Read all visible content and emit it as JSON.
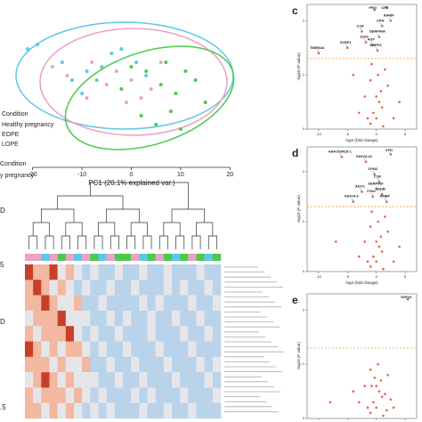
{
  "chart_data": [
    {
      "type": "scatter",
      "xlabel": "PC1 (20.1% explained var.)",
      "xlim": [
        -23,
        23
      ],
      "ylim": [
        -17,
        18
      ],
      "xticks": [
        -20,
        -10,
        0,
        10,
        20
      ],
      "legend_title": "Condition",
      "series": [
        {
          "name": "Healthy pregnancy",
          "color": "#5bc8e8",
          "x": [
            -21,
            -19,
            -14,
            -9,
            -6,
            -4,
            -2,
            -10,
            -7,
            1,
            3,
            -12
          ],
          "y": [
            9,
            10,
            6,
            4,
            5,
            8,
            9,
            -1,
            2,
            6,
            3,
            2
          ]
        },
        {
          "name": "EOPE",
          "color": "#eba2c4",
          "x": [
            -16,
            -13,
            -8,
            -5,
            -3,
            0,
            2,
            -1,
            6,
            -9,
            4
          ],
          "y": [
            5,
            3,
            6,
            1,
            4,
            2,
            -2,
            -3,
            6,
            -2,
            0
          ]
        },
        {
          "name": "LOPE",
          "color": "#4cc94c",
          "x": [
            0,
            3,
            6,
            9,
            11,
            13,
            8,
            5,
            2,
            -2,
            10,
            15,
            7
          ],
          "y": [
            5,
            4,
            1,
            -1,
            4,
            2,
            -5,
            -8,
            -6,
            0,
            -9,
            -3,
            6
          ]
        }
      ]
    },
    {
      "type": "heatmap",
      "condition_labels": [
        "Condition",
        "y pregnancy"
      ],
      "side_labels": [
        "D",
        "5",
        "D",
        ".5"
      ],
      "group_colors": [
        "#5bc8e8",
        "#eba2c4",
        "#4cc94c"
      ],
      "column_groups": [
        1,
        1,
        0,
        1,
        2,
        1,
        0,
        1,
        2,
        0,
        1,
        2,
        2,
        1,
        0,
        2,
        1,
        2,
        0,
        2,
        1,
        2,
        0,
        2
      ],
      "values": [
        [
          2,
          1,
          1,
          2,
          0,
          1,
          0,
          -1,
          0,
          -1,
          -1,
          0,
          -1,
          -1,
          0,
          -1,
          -1,
          0,
          -1,
          -1,
          -1,
          0,
          -1,
          -1
        ],
        [
          1,
          2,
          1,
          0,
          1,
          0,
          -1,
          0,
          -1,
          -1,
          0,
          -1,
          -1,
          0,
          -1,
          -1,
          -1,
          0,
          -1,
          0,
          -1,
          -1,
          0,
          -1
        ],
        [
          1,
          1,
          2,
          1,
          0,
          0,
          1,
          -1,
          -1,
          0,
          -1,
          -1,
          -1,
          -1,
          0,
          -1,
          0,
          -1,
          -1,
          -1,
          0,
          -1,
          -1,
          0
        ],
        [
          0,
          1,
          1,
          1,
          2,
          0,
          0,
          0,
          -1,
          -1,
          0,
          -1,
          0,
          -1,
          -1,
          0,
          -1,
          -1,
          0,
          -1,
          -1,
          0,
          -1,
          -1
        ],
        [
          1,
          0,
          1,
          1,
          1,
          2,
          0,
          -1,
          0,
          -1,
          -1,
          0,
          -1,
          -1,
          -1,
          0,
          -1,
          -1,
          -1,
          0,
          -1,
          -1,
          0,
          -1
        ],
        [
          2,
          1,
          0,
          1,
          0,
          1,
          1,
          0,
          -1,
          0,
          -1,
          -1,
          0,
          -1,
          -1,
          -1,
          0,
          -1,
          -1,
          -1,
          0,
          -1,
          -1,
          -1
        ],
        [
          1,
          1,
          1,
          0,
          1,
          0,
          0,
          1,
          -1,
          -1,
          0,
          -1,
          -1,
          0,
          -1,
          -1,
          -1,
          0,
          -1,
          -1,
          -1,
          0,
          -1,
          0
        ],
        [
          0,
          1,
          2,
          1,
          0,
          1,
          0,
          0,
          0,
          -1,
          -1,
          0,
          -1,
          -1,
          0,
          -1,
          -1,
          -1,
          0,
          -1,
          -1,
          -1,
          0,
          -1
        ],
        [
          1,
          0,
          1,
          1,
          1,
          0,
          1,
          0,
          -1,
          0,
          -1,
          -1,
          -1,
          0,
          -1,
          0,
          -1,
          -1,
          -1,
          0,
          -1,
          -1,
          -1,
          0
        ],
        [
          1,
          1,
          0,
          1,
          0,
          1,
          0,
          -1,
          0,
          -1,
          0,
          -1,
          -1,
          -1,
          0,
          -1,
          -1,
          0,
          -1,
          -1,
          0,
          -1,
          -1,
          -1
        ]
      ]
    },
    {
      "type": "volcano",
      "panel": "c",
      "xlabel": "log2 (fold change)",
      "ylabel": "-log10 (P value)",
      "xlim": [
        -12,
        7
      ],
      "ylim": [
        0,
        2.3
      ],
      "xticks": [
        -10,
        -5,
        0,
        5
      ],
      "yticks": [
        0,
        1,
        2
      ],
      "threshold": 1.3,
      "threshold_color": "#f0a030",
      "color": "#e8604c",
      "x": [
        -1,
        -0.5,
        0,
        0.5,
        1,
        -2,
        2,
        -1,
        0.3,
        1.5,
        -3,
        3,
        -0.8,
        0.8,
        -1.5,
        0,
        1.2,
        -4,
        -10,
        -5,
        -2.5,
        -1.8,
        -0.6,
        0.5,
        1,
        2.5,
        -0.3,
        1.8,
        0.2,
        4
      ],
      "y": [
        0.1,
        0.3,
        0.2,
        0.5,
        0.4,
        0.6,
        0.8,
        0.9,
        1.0,
        1.1,
        0.3,
        0.2,
        1.2,
        0.7,
        0.2,
        0.6,
        0.05,
        1.0,
        1.4,
        1.5,
        1.8,
        1.6,
        1.55,
        1.7,
        1.9,
        2.0,
        2.2,
        2.25,
        1.45,
        0.5
      ],
      "labels": [
        null,
        null,
        null,
        null,
        null,
        null,
        null,
        null,
        null,
        null,
        null,
        null,
        null,
        null,
        null,
        null,
        null,
        null,
        "TMEM44",
        "SVEP1",
        "C1R",
        "S100",
        "AGT",
        "SERPINA",
        "CPN",
        "IGFBP",
        "PRG",
        "CFD",
        "ENPP3",
        null
      ]
    },
    {
      "type": "volcano",
      "panel": "d",
      "xlabel": "log2 (fold change)",
      "ylabel": "-log10 (P value)",
      "xlim": [
        -12,
        7
      ],
      "ylim": [
        0,
        2.5
      ],
      "xticks": [
        -10,
        -5,
        0,
        5
      ],
      "yticks": [
        0,
        1,
        2
      ],
      "threshold": 1.3,
      "threshold_color": "#f0a030",
      "color": "#e8604c",
      "x": [
        -1,
        -0.5,
        0,
        0.5,
        1,
        -2,
        2,
        -1,
        0.3,
        1.5,
        -3,
        3,
        -0.8,
        0.8,
        -1.5,
        0,
        1.2,
        -6,
        -4,
        -2.5,
        -1.8,
        -0.6,
        0.5,
        1,
        2.5,
        -0.3,
        1.8,
        0.2,
        4,
        -7
      ],
      "y": [
        0.1,
        0.3,
        0.2,
        0.5,
        0.4,
        0.6,
        0.8,
        0.9,
        1.0,
        1.1,
        0.3,
        0.2,
        1.2,
        0.7,
        0.2,
        0.6,
        0.05,
        2.3,
        1.4,
        1.6,
        2.2,
        1.5,
        1.8,
        1.55,
        2.35,
        1.95,
        1.4,
        1.65,
        0.5,
        0.6
      ],
      "labels": [
        null,
        null,
        null,
        null,
        null,
        null,
        null,
        null,
        null,
        null,
        null,
        null,
        null,
        null,
        null,
        null,
        null,
        "IGHV3OR15-1",
        "IGHV4-3",
        "ADC1",
        "IGHV3-23",
        "ITIH4",
        "C1R",
        "PDHB",
        "CFD",
        "CPN2",
        "AMBP",
        "SERPINF",
        null,
        null
      ]
    },
    {
      "type": "volcano",
      "panel": "e",
      "xlabel": "log2 (fold change)",
      "ylabel": "-log10 (P value)",
      "xlim": [
        -12,
        7
      ],
      "ylim": [
        0,
        2.3
      ],
      "xticks": [
        -10,
        -5,
        0,
        5
      ],
      "yticks": [
        0,
        1,
        2
      ],
      "threshold": 1.3,
      "threshold_color": "#f0a030",
      "color": "#e8604c",
      "x": [
        -1,
        -0.5,
        0,
        0.5,
        1,
        -2,
        2,
        -1,
        0.3,
        1.5,
        -3,
        3,
        -0.8,
        0.8,
        -1.5,
        0,
        1.2,
        -4,
        -8,
        2.5,
        -0.3,
        1.8,
        5.5
      ],
      "y": [
        0.1,
        0.3,
        0.2,
        0.5,
        0.4,
        0.6,
        0.8,
        0.9,
        1.0,
        0.45,
        0.3,
        0.2,
        0.6,
        0.7,
        0.2,
        0.6,
        0.05,
        0.5,
        0.3,
        0.35,
        0.75,
        0.15,
        2.2
      ],
      "labels": [
        null,
        null,
        null,
        null,
        null,
        null,
        null,
        null,
        null,
        null,
        null,
        null,
        null,
        null,
        null,
        null,
        null,
        null,
        null,
        null,
        null,
        null,
        "IGHV3"
      ]
    }
  ]
}
